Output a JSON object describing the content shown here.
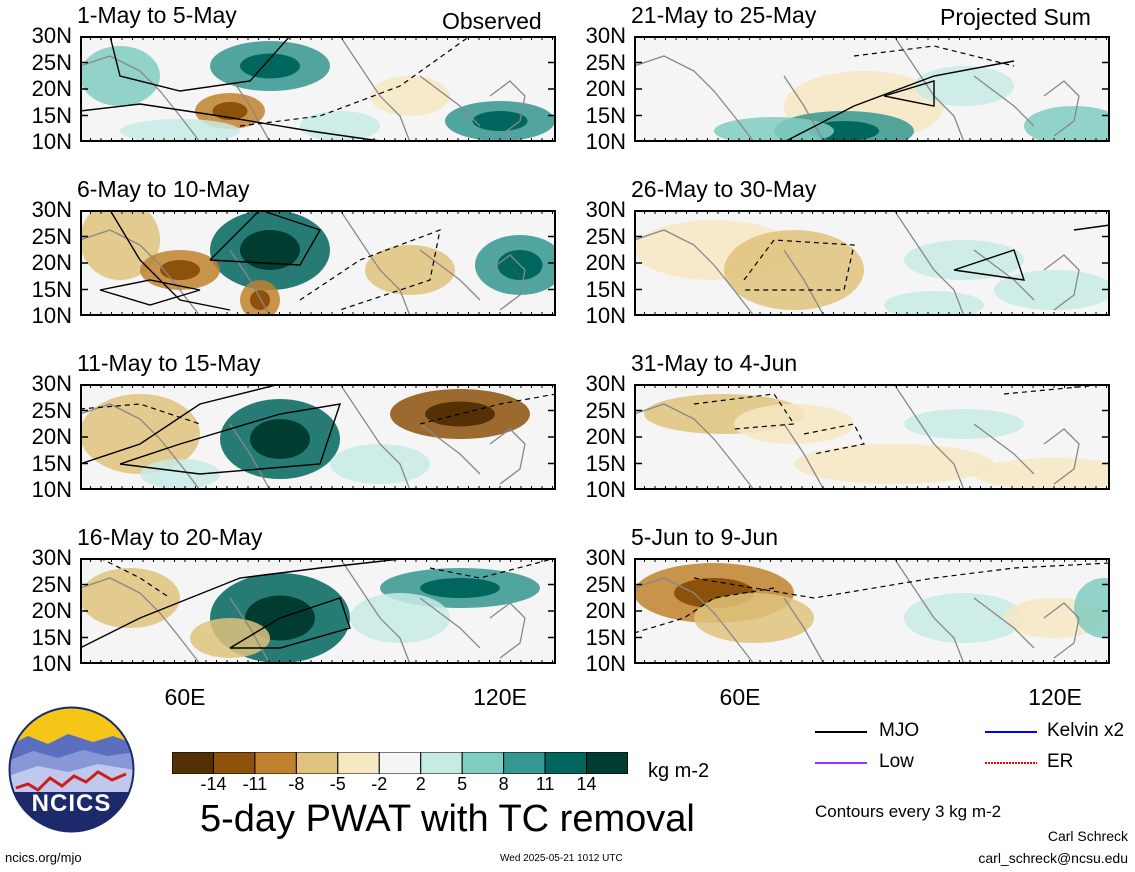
{
  "headers": {
    "left": "Observed",
    "right": "Projected Sum"
  },
  "panels": [
    {
      "title": "1-May to 5-May"
    },
    {
      "title": "21-May to 25-May"
    },
    {
      "title": "6-May to 10-May"
    },
    {
      "title": "26-May to 30-May"
    },
    {
      "title": "11-May to 15-May"
    },
    {
      "title": "31-May to 4-Jun"
    },
    {
      "title": "16-May to 20-May"
    },
    {
      "title": "5-Jun to 9-Jun"
    }
  ],
  "lat_labels": [
    "30N",
    "25N",
    "20N",
    "15N",
    "10N"
  ],
  "lon_labels": [
    "60E",
    "120E"
  ],
  "colorbar": {
    "labels": [
      "-14",
      "-11",
      "-8",
      "-5",
      "-2",
      "2",
      "5",
      "8",
      "11",
      "14"
    ],
    "colors": [
      "#543005",
      "#8c510a",
      "#bf812d",
      "#dfc27d",
      "#f6e8c3",
      "#f5f5f5",
      "#c7eae5",
      "#80cdc1",
      "#35978f",
      "#01665e",
      "#003c30"
    ],
    "units": "kg m-2"
  },
  "legend": {
    "items": [
      {
        "label": "MJO",
        "color": "#000000"
      },
      {
        "label": "Kelvin x2",
        "color": "#0000ff"
      },
      {
        "label": "Low",
        "color": "#9b30ff"
      },
      {
        "label": "ER",
        "color": "#ff0000"
      }
    ],
    "contour_note": "Contours every 3 kg m-2"
  },
  "main_title": "5-day PWAT with TC removal",
  "logo_text": "NCICS",
  "footer": {
    "url": "ncics.org/mjo",
    "timestamp": "Wed 2025-05-21 1012 UTC",
    "author": "Carl Schreck",
    "email": "carl_schreck@ncsu.edu"
  }
}
